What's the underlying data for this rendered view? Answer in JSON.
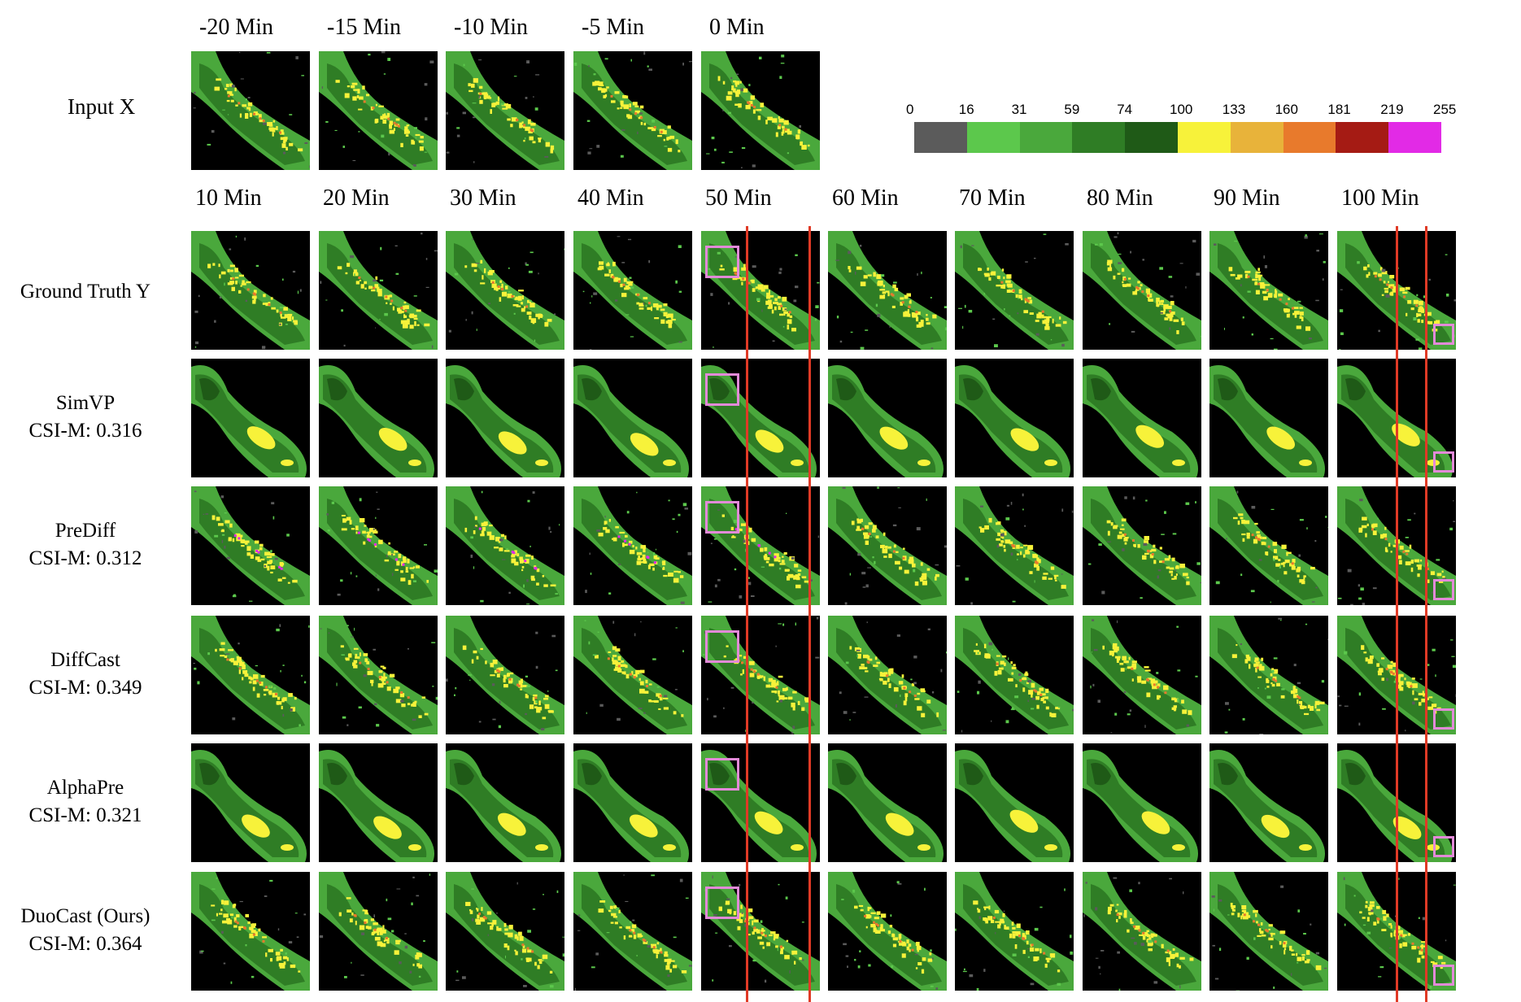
{
  "input": {
    "row_label": "Input X",
    "times": [
      "-20 Min",
      "-15 Min",
      "-10 Min",
      "-5 Min",
      "0 Min"
    ]
  },
  "forecast_times": [
    "10 Min",
    "20 Min",
    "30 Min",
    "40 Min",
    "50 Min",
    "60 Min",
    "70 Min",
    "80 Min",
    "90 Min",
    "100 Min"
  ],
  "rows": [
    {
      "name": "Ground Truth Y",
      "score": ""
    },
    {
      "name": "SimVP",
      "score": "CSI-M: 0.316"
    },
    {
      "name": "PreDiff",
      "score": "CSI-M: 0.312"
    },
    {
      "name": "DiffCast",
      "score": "CSI-M: 0.349"
    },
    {
      "name": "AlphaPre",
      "score": "CSI-M: 0.321"
    },
    {
      "name": "DuoCast (Ours)",
      "score": "CSI-M: 0.364"
    }
  ],
  "colorbar": {
    "ticks": [
      "0",
      "16",
      "31",
      "59",
      "74",
      "100",
      "133",
      "160",
      "181",
      "219",
      "255"
    ],
    "colors": [
      "#5b5b5b",
      "#5cc84c",
      "#4aa83c",
      "#2f7d25",
      "#1f5a17",
      "#f7f23a",
      "#e8b33a",
      "#e87a2c",
      "#a51b14",
      "#e22ae6"
    ]
  }
}
